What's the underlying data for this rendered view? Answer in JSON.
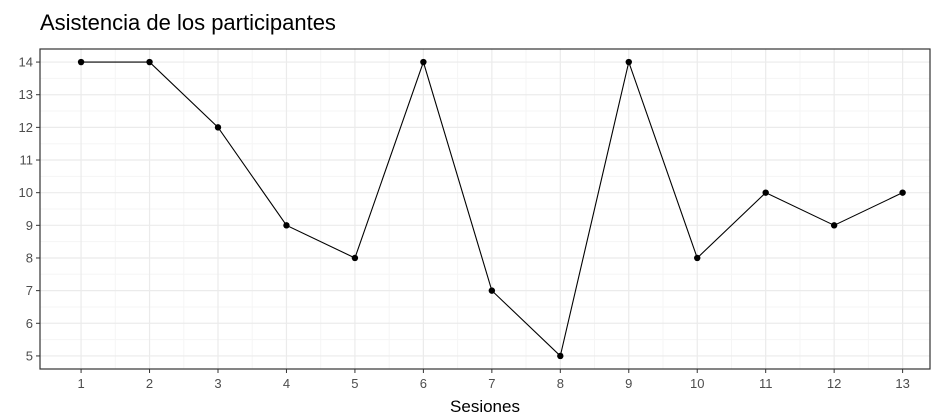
{
  "chart_data": {
    "type": "line",
    "title": "Asistencia de los participantes",
    "xlabel": "Sesiones",
    "ylabel": "",
    "x": [
      1,
      2,
      3,
      4,
      5,
      6,
      7,
      8,
      9,
      10,
      11,
      12,
      13
    ],
    "series": [
      {
        "values": [
          14,
          14,
          12,
          9,
          8,
          14,
          7,
          5,
          14,
          8,
          10,
          9,
          10
        ],
        "color": "#000000"
      }
    ],
    "xlim": [
      0.4,
      13.4
    ],
    "ylim": [
      4.6,
      14.4
    ],
    "x_ticks": [
      1,
      2,
      3,
      4,
      5,
      6,
      7,
      8,
      9,
      10,
      11,
      12,
      13
    ],
    "y_ticks": [
      5,
      6,
      7,
      8,
      9,
      10,
      11,
      12,
      13,
      14
    ],
    "grid": true,
    "minor_grid": true,
    "legend": "none",
    "colors": {
      "panel_border": "#333333",
      "grid_major": "#ebebeb",
      "grid_minor": "#f5f5f5",
      "line": "#000000",
      "tick_text": "#4d4d4d"
    }
  }
}
